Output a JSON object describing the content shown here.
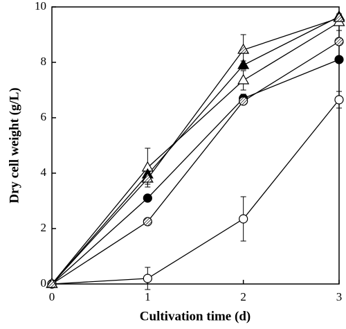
{
  "chart_data": {
    "type": "line",
    "x_label": "Cultivation time (d)",
    "y_label": "Dry cell weight (g/L)",
    "x": [
      0,
      1,
      2,
      3
    ],
    "xlim": [
      0,
      3
    ],
    "xticks": [
      0,
      1,
      2,
      3
    ],
    "ylim": [
      0,
      10
    ],
    "yticks": [
      0,
      2,
      4,
      6,
      8,
      10
    ],
    "grid": false,
    "series": [
      {
        "color": "#000000",
        "marker": "circle",
        "marker_fill": "open",
        "values": [
          0,
          0.2,
          2.35,
          6.65
        ],
        "errors": [
          0,
          0.4,
          0.8,
          0.3
        ]
      },
      {
        "color": "#000000",
        "marker": "circle",
        "marker_fill": "filled",
        "values": [
          0,
          3.1,
          6.7,
          8.1
        ],
        "errors": [
          0,
          0.1,
          0.15,
          0.1
        ]
      },
      {
        "color": "#000000",
        "marker": "circle",
        "marker_fill": "hatched",
        "values": [
          0,
          2.25,
          6.6,
          8.75
        ],
        "errors": [
          0,
          0.1,
          0.1,
          0.1
        ]
      },
      {
        "color": "#000000",
        "marker": "triangle",
        "marker_fill": "open",
        "values": [
          0,
          4.2,
          7.35,
          9.45
        ],
        "errors": [
          0,
          0.7,
          0.35,
          0.3
        ]
      },
      {
        "color": "#000000",
        "marker": "triangle",
        "marker_fill": "filled",
        "values": [
          0,
          3.95,
          7.9,
          9.65
        ],
        "errors": [
          0,
          0.15,
          0.15,
          0.1
        ]
      },
      {
        "color": "#000000",
        "marker": "triangle",
        "marker_fill": "hatched",
        "values": [
          0,
          3.8,
          8.45,
          9.6
        ],
        "errors": [
          0,
          0.2,
          0.55,
          0.1
        ]
      }
    ]
  }
}
